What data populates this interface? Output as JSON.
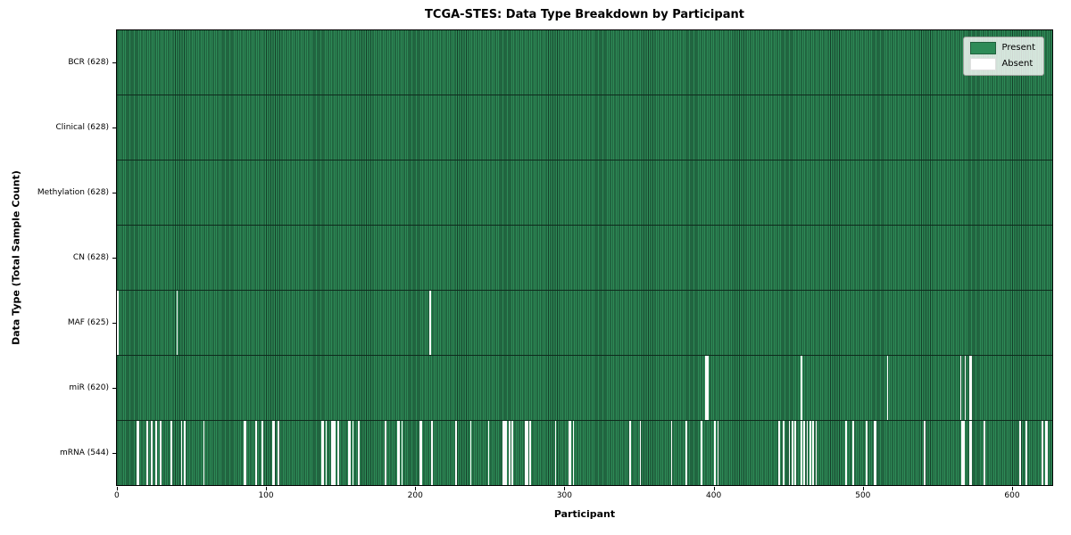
{
  "figure": {
    "background": "#ffffff"
  },
  "chart_data": {
    "type": "heatmap",
    "title": "TCGA-STES: Data Type Breakdown by Participant",
    "xlabel": "Participant",
    "ylabel": "Data Type (Total Sample Count)",
    "x_ticks": [
      0,
      100,
      200,
      300,
      400,
      500,
      600
    ],
    "x_range": [
      0,
      628
    ],
    "n_participants": 628,
    "grid": false,
    "legend_position": "upper right",
    "colors": {
      "present": "#2e8b57",
      "present_edge": "#143f29",
      "absent": "#ffffff",
      "row_divider": "#0e2a1c",
      "axis": "#000000"
    },
    "legend_items": [
      {
        "label": "Present",
        "color": "#2e8b57"
      },
      {
        "label": "Absent",
        "color": "#ffffff"
      }
    ],
    "rows": [
      {
        "name": "BCR",
        "total": 628,
        "label": "BCR (628)",
        "absent_participants": []
      },
      {
        "name": "Clinical",
        "total": 628,
        "label": "Clinical (628)",
        "absent_participants": []
      },
      {
        "name": "Methylation",
        "total": 628,
        "label": "Methylation (628)",
        "absent_participants": []
      },
      {
        "name": "CN",
        "total": 628,
        "label": "CN (628)",
        "absent_participants": []
      },
      {
        "name": "MAF",
        "total": 625,
        "label": "MAF (625)",
        "absent_participants": [
          0,
          40,
          210
        ]
      },
      {
        "name": "miR",
        "total": 620,
        "label": "miR (620)",
        "absent_participants": [
          395,
          396,
          459,
          517,
          566,
          569,
          572,
          573
        ]
      },
      {
        "name": "mRNA",
        "total": 544,
        "label": "mRNA (544)",
        "absent_participants": [
          13,
          14,
          20,
          23,
          26,
          29,
          36,
          43,
          45,
          58,
          85,
          86,
          93,
          97,
          104,
          105,
          108,
          137,
          138,
          140,
          144,
          145,
          146,
          148,
          155,
          156,
          158,
          162,
          180,
          188,
          189,
          191,
          203,
          204,
          211,
          227,
          237,
          249,
          259,
          260,
          261,
          263,
          265,
          274,
          275,
          277,
          294,
          303,
          304,
          306,
          344,
          351,
          372,
          382,
          392,
          401,
          403,
          444,
          447,
          451,
          453,
          455,
          459,
          461,
          463,
          465,
          467,
          469,
          489,
          494,
          503,
          508,
          509,
          542,
          567,
          568,
          572,
          573,
          582,
          606,
          610,
          621,
          623,
          624
        ]
      }
    ]
  }
}
